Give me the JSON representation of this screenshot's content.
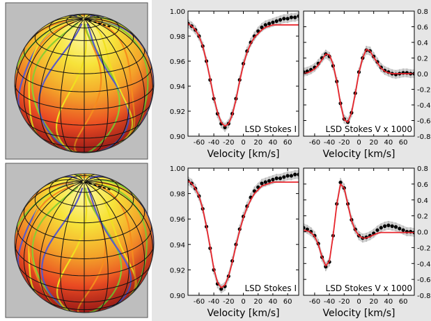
{
  "chart_data": [
    {
      "type": "line",
      "title": "LSD Stokes I",
      "xlabel": "Velocity [km/s]",
      "ylabel": "",
      "xlim": [
        -75,
        75
      ],
      "ylim": [
        0.9,
        1.0
      ],
      "x_ticks": [
        -60,
        -40,
        -20,
        0,
        20,
        40,
        60
      ],
      "y_ticks": [
        0.9,
        0.92,
        0.94,
        0.96,
        0.98,
        1.0
      ],
      "y_tick_labels": [
        "0.90",
        "0.92",
        "0.94",
        "0.96",
        "0.98",
        "1.00"
      ],
      "y_axis_side": "left",
      "grid": false,
      "series": [
        {
          "kind": "observed",
          "style": "black points with grey error bars",
          "color": "#000000",
          "x": [
            -75,
            -70,
            -65,
            -60,
            -55,
            -50,
            -45,
            -40,
            -35,
            -30,
            -25,
            -20,
            -15,
            -10,
            -5,
            0,
            5,
            10,
            15,
            20,
            25,
            30,
            35,
            40,
            45,
            50,
            55,
            60,
            65,
            70,
            75
          ],
          "y": [
            0.99,
            0.988,
            0.985,
            0.98,
            0.972,
            0.96,
            0.945,
            0.93,
            0.918,
            0.91,
            0.907,
            0.91,
            0.918,
            0.93,
            0.945,
            0.958,
            0.968,
            0.975,
            0.98,
            0.984,
            0.987,
            0.989,
            0.99,
            0.991,
            0.992,
            0.993,
            0.994,
            0.994,
            0.995,
            0.995,
            0.996
          ]
        },
        {
          "kind": "model",
          "style": "red line",
          "color": "#e8242b",
          "x": [
            -75,
            -70,
            -65,
            -60,
            -55,
            -50,
            -45,
            -40,
            -35,
            -30,
            -25,
            -20,
            -15,
            -10,
            -5,
            0,
            5,
            10,
            15,
            20,
            25,
            30,
            35,
            40,
            45,
            50,
            55,
            60,
            65,
            70,
            75
          ],
          "y": [
            0.99,
            0.988,
            0.985,
            0.98,
            0.972,
            0.96,
            0.946,
            0.931,
            0.919,
            0.911,
            0.908,
            0.91,
            0.917,
            0.929,
            0.944,
            0.957,
            0.967,
            0.974,
            0.979,
            0.982,
            0.985,
            0.987,
            0.988,
            0.989,
            0.989,
            0.989,
            0.989,
            0.989,
            0.989,
            0.989,
            0.989
          ]
        }
      ]
    },
    {
      "type": "line",
      "title": "LSD Stokes V x 1000",
      "xlabel": "Velocity [km/s]",
      "ylabel": "",
      "xlim": [
        -75,
        75
      ],
      "ylim": [
        -0.8,
        0.8
      ],
      "x_ticks": [
        -60,
        -40,
        -20,
        0,
        20,
        40,
        60
      ],
      "y_ticks": [
        -0.8,
        -0.6,
        -0.4,
        -0.2,
        0.0,
        0.2,
        0.4,
        0.6,
        0.8
      ],
      "y_tick_labels": [
        "-0.8",
        "-0.6",
        "-0.4",
        "-0.2",
        "0.0",
        "0.2",
        "0.4",
        "0.6",
        "0.8"
      ],
      "y_axis_side": "right",
      "grid": false,
      "series": [
        {
          "kind": "observed",
          "style": "black points with grey error bars",
          "color": "#000000",
          "x": [
            -75,
            -70,
            -65,
            -60,
            -55,
            -50,
            -45,
            -40,
            -35,
            -30,
            -25,
            -20,
            -15,
            -10,
            -5,
            0,
            5,
            10,
            15,
            20,
            25,
            30,
            35,
            40,
            45,
            50,
            55,
            60,
            65,
            70,
            75
          ],
          "y": [
            0.02,
            0.03,
            0.05,
            0.08,
            0.13,
            0.2,
            0.25,
            0.22,
            0.1,
            -0.1,
            -0.38,
            -0.58,
            -0.62,
            -0.5,
            -0.25,
            0.02,
            0.2,
            0.3,
            0.29,
            0.22,
            0.15,
            0.08,
            0.04,
            0.02,
            0.0,
            -0.01,
            0.0,
            0.01,
            0.01,
            0.0,
            0.0
          ]
        },
        {
          "kind": "model",
          "style": "red line",
          "color": "#e8242b",
          "x": [
            -75,
            -70,
            -65,
            -60,
            -55,
            -50,
            -45,
            -40,
            -35,
            -30,
            -25,
            -20,
            -15,
            -10,
            -5,
            0,
            5,
            10,
            15,
            20,
            25,
            30,
            35,
            40,
            45,
            50,
            55,
            60,
            65,
            70,
            75
          ],
          "y": [
            0.0,
            0.01,
            0.03,
            0.06,
            0.11,
            0.18,
            0.25,
            0.24,
            0.12,
            -0.1,
            -0.38,
            -0.59,
            -0.62,
            -0.5,
            -0.26,
            0.01,
            0.2,
            0.31,
            0.29,
            0.21,
            0.14,
            0.07,
            0.03,
            0.01,
            0.0,
            0.0,
            0.0,
            0.0,
            0.0,
            0.0,
            0.0
          ]
        }
      ]
    },
    {
      "type": "line",
      "title": "LSD Stokes I",
      "xlabel": "Velocity [km/s]",
      "ylabel": "",
      "xlim": [
        -75,
        75
      ],
      "ylim": [
        0.9,
        1.0
      ],
      "x_ticks": [
        -60,
        -40,
        -20,
        0,
        20,
        40,
        60
      ],
      "y_ticks": [
        0.9,
        0.92,
        0.94,
        0.96,
        0.98,
        1.0
      ],
      "y_tick_labels": [
        "0.90",
        "0.92",
        "0.94",
        "0.96",
        "0.98",
        "1.00"
      ],
      "y_axis_side": "left",
      "grid": false,
      "series": [
        {
          "kind": "observed",
          "style": "black points with grey error bars",
          "color": "#000000",
          "x": [
            -75,
            -70,
            -65,
            -60,
            -55,
            -50,
            -45,
            -40,
            -35,
            -30,
            -25,
            -20,
            -15,
            -10,
            -5,
            0,
            5,
            10,
            15,
            20,
            25,
            30,
            35,
            40,
            45,
            50,
            55,
            60,
            65,
            70,
            75
          ],
          "y": [
            0.99,
            0.988,
            0.984,
            0.978,
            0.968,
            0.954,
            0.937,
            0.92,
            0.909,
            0.905,
            0.907,
            0.915,
            0.927,
            0.94,
            0.952,
            0.962,
            0.97,
            0.977,
            0.982,
            0.985,
            0.988,
            0.989,
            0.99,
            0.991,
            0.992,
            0.992,
            0.993,
            0.994,
            0.994,
            0.995,
            0.995
          ]
        },
        {
          "kind": "model",
          "style": "red line",
          "color": "#e8242b",
          "x": [
            -75,
            -70,
            -65,
            -60,
            -55,
            -50,
            -45,
            -40,
            -35,
            -30,
            -25,
            -20,
            -15,
            -10,
            -5,
            0,
            5,
            10,
            15,
            20,
            25,
            30,
            35,
            40,
            45,
            50,
            55,
            60,
            65,
            70,
            75
          ],
          "y": [
            0.99,
            0.988,
            0.984,
            0.978,
            0.968,
            0.954,
            0.938,
            0.921,
            0.91,
            0.906,
            0.908,
            0.915,
            0.926,
            0.939,
            0.951,
            0.961,
            0.969,
            0.975,
            0.98,
            0.983,
            0.986,
            0.987,
            0.988,
            0.989,
            0.989,
            0.989,
            0.989,
            0.989,
            0.989,
            0.989,
            0.989
          ]
        }
      ]
    },
    {
      "type": "line",
      "title": "LSD Stokes V x 1000",
      "xlabel": "Velocity [km/s]",
      "ylabel": "",
      "xlim": [
        -75,
        75
      ],
      "ylim": [
        -0.8,
        0.8
      ],
      "x_ticks": [
        -60,
        -40,
        -20,
        0,
        20,
        40,
        60
      ],
      "y_ticks": [
        -0.8,
        -0.6,
        -0.4,
        -0.2,
        0.0,
        0.2,
        0.4,
        0.6,
        0.8
      ],
      "y_tick_labels": [
        "-0.8",
        "-0.6",
        "-0.4",
        "-0.2",
        "0.0",
        "0.2",
        "0.4",
        "0.6",
        "0.8"
      ],
      "y_axis_side": "right",
      "grid": false,
      "series": [
        {
          "kind": "observed",
          "style": "black points with grey error bars",
          "color": "#000000",
          "x": [
            -75,
            -70,
            -65,
            -60,
            -55,
            -50,
            -45,
            -40,
            -35,
            -30,
            -25,
            -20,
            -15,
            -10,
            -5,
            0,
            5,
            10,
            15,
            20,
            25,
            30,
            35,
            40,
            45,
            50,
            55,
            60,
            65,
            70,
            75
          ],
          "y": [
            0.05,
            0.03,
            0.0,
            -0.05,
            -0.15,
            -0.32,
            -0.44,
            -0.38,
            -0.05,
            0.35,
            0.62,
            0.55,
            0.35,
            0.15,
            0.03,
            -0.05,
            -0.08,
            -0.07,
            -0.05,
            -0.02,
            0.02,
            0.05,
            0.07,
            0.08,
            0.07,
            0.06,
            0.04,
            0.02,
            0.0,
            0.0,
            -0.01
          ]
        },
        {
          "kind": "model",
          "style": "red line",
          "color": "#e8242b",
          "x": [
            -75,
            -70,
            -65,
            -60,
            -55,
            -50,
            -45,
            -40,
            -35,
            -30,
            -25,
            -20,
            -15,
            -10,
            -5,
            0,
            5,
            10,
            15,
            20,
            25,
            30,
            35,
            40,
            45,
            50,
            55,
            60,
            65,
            70,
            75
          ],
          "y": [
            0.02,
            0.01,
            -0.01,
            -0.06,
            -0.16,
            -0.32,
            -0.43,
            -0.37,
            -0.05,
            0.34,
            0.6,
            0.55,
            0.34,
            0.14,
            0.02,
            -0.05,
            -0.08,
            -0.08,
            -0.06,
            -0.04,
            -0.02,
            -0.01,
            -0.01,
            -0.01,
            -0.01,
            -0.01,
            -0.01,
            -0.01,
            -0.01,
            -0.01,
            -0.01
          ]
        }
      ]
    }
  ],
  "colors": {
    "background": "#ffffff",
    "panel_area": "#e6e6e6",
    "sphere_frame": "#bebebe",
    "observed": "#000000",
    "error_bars": "#b8b8b8",
    "model": "#e8242b",
    "grid_lines": "#141414",
    "latitude_colors": [
      "#f0e020",
      "#f58c1e",
      "#8ccd32",
      "#5a5ac8"
    ]
  },
  "icons": {
    "star_maps": "spotted-star-sphere-with-field-line-projection"
  }
}
